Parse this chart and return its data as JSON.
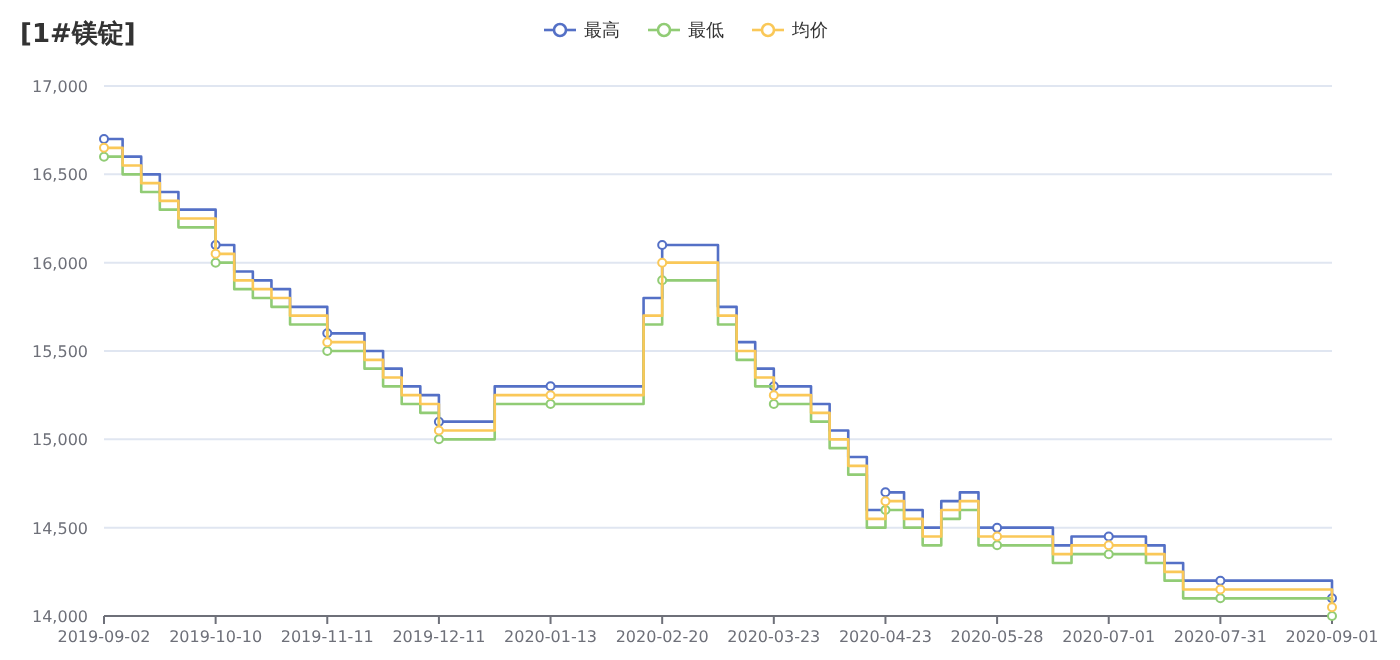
{
  "chart_data": {
    "type": "step",
    "title": "[1#镁锭]",
    "categories": [
      "2019-09-02",
      null,
      null,
      null,
      null,
      null,
      "2019-10-10",
      null,
      null,
      null,
      null,
      null,
      "2019-11-11",
      null,
      null,
      null,
      null,
      null,
      "2019-12-11",
      null,
      null,
      null,
      null,
      null,
      "2020-01-13",
      null,
      null,
      null,
      null,
      null,
      "2020-02-20",
      null,
      null,
      null,
      null,
      null,
      "2020-03-23",
      null,
      null,
      null,
      null,
      null,
      "2020-04-23",
      null,
      null,
      null,
      null,
      null,
      "2020-05-28",
      null,
      null,
      null,
      null,
      null,
      "2020-07-01",
      null,
      null,
      null,
      null,
      null,
      "2020-07-31",
      null,
      null,
      null,
      null,
      null,
      "2020-09-01"
    ],
    "series": [
      {
        "name": "最高",
        "color": "#5470c6",
        "values": [
          16700,
          16600,
          16500,
          16400,
          16300,
          16300,
          16100,
          15950,
          15900,
          15850,
          15750,
          15750,
          15600,
          15600,
          15500,
          15400,
          15300,
          15250,
          15100,
          15100,
          15100,
          15300,
          15300,
          15300,
          15300,
          15300,
          15300,
          15300,
          15300,
          15800,
          16100,
          16100,
          16100,
          15750,
          15550,
          15400,
          15300,
          15300,
          15200,
          15050,
          14900,
          14600,
          14700,
          14600,
          14500,
          14650,
          14700,
          14500,
          14500,
          14500,
          14500,
          14400,
          14450,
          14450,
          14450,
          14450,
          14400,
          14300,
          14200,
          14200,
          14200,
          14200,
          14200,
          14200,
          14200,
          14200,
          14100
        ]
      },
      {
        "name": "最低",
        "color": "#91cc75",
        "values": [
          16600,
          16500,
          16400,
          16300,
          16200,
          16200,
          16000,
          15850,
          15800,
          15750,
          15650,
          15650,
          15500,
          15500,
          15400,
          15300,
          15200,
          15150,
          15000,
          15000,
          15000,
          15200,
          15200,
          15200,
          15200,
          15200,
          15200,
          15200,
          15200,
          15650,
          15900,
          15900,
          15900,
          15650,
          15450,
          15300,
          15200,
          15200,
          15100,
          14950,
          14800,
          14500,
          14600,
          14500,
          14400,
          14550,
          14600,
          14400,
          14400,
          14400,
          14400,
          14300,
          14350,
          14350,
          14350,
          14350,
          14300,
          14200,
          14100,
          14100,
          14100,
          14100,
          14100,
          14100,
          14100,
          14100,
          14000
        ]
      },
      {
        "name": "均价",
        "color": "#fac858",
        "values": [
          16650,
          16550,
          16450,
          16350,
          16250,
          16250,
          16050,
          15900,
          15850,
          15800,
          15700,
          15700,
          15550,
          15550,
          15450,
          15350,
          15250,
          15200,
          15050,
          15050,
          15050,
          15250,
          15250,
          15250,
          15250,
          15250,
          15250,
          15250,
          15250,
          15700,
          16000,
          16000,
          16000,
          15700,
          15500,
          15350,
          15250,
          15250,
          15150,
          15000,
          14850,
          14550,
          14650,
          14550,
          14450,
          14600,
          14650,
          14450,
          14450,
          14450,
          14450,
          14350,
          14400,
          14400,
          14400,
          14400,
          14350,
          14250,
          14150,
          14150,
          14150,
          14150,
          14150,
          14150,
          14150,
          14150,
          14050
        ]
      }
    ],
    "ylim": [
      14000,
      17000
    ],
    "yticks": [
      {
        "value": 14000,
        "label": "14,000"
      },
      {
        "value": 14500,
        "label": "14,500"
      },
      {
        "value": 15000,
        "label": "15,000"
      },
      {
        "value": 15500,
        "label": "15,500"
      },
      {
        "value": 16000,
        "label": "16,000"
      },
      {
        "value": 16500,
        "label": "16,500"
      },
      {
        "value": 17000,
        "label": "17,000"
      }
    ],
    "grid": "y",
    "legend": "top",
    "line_style": "solid"
  }
}
